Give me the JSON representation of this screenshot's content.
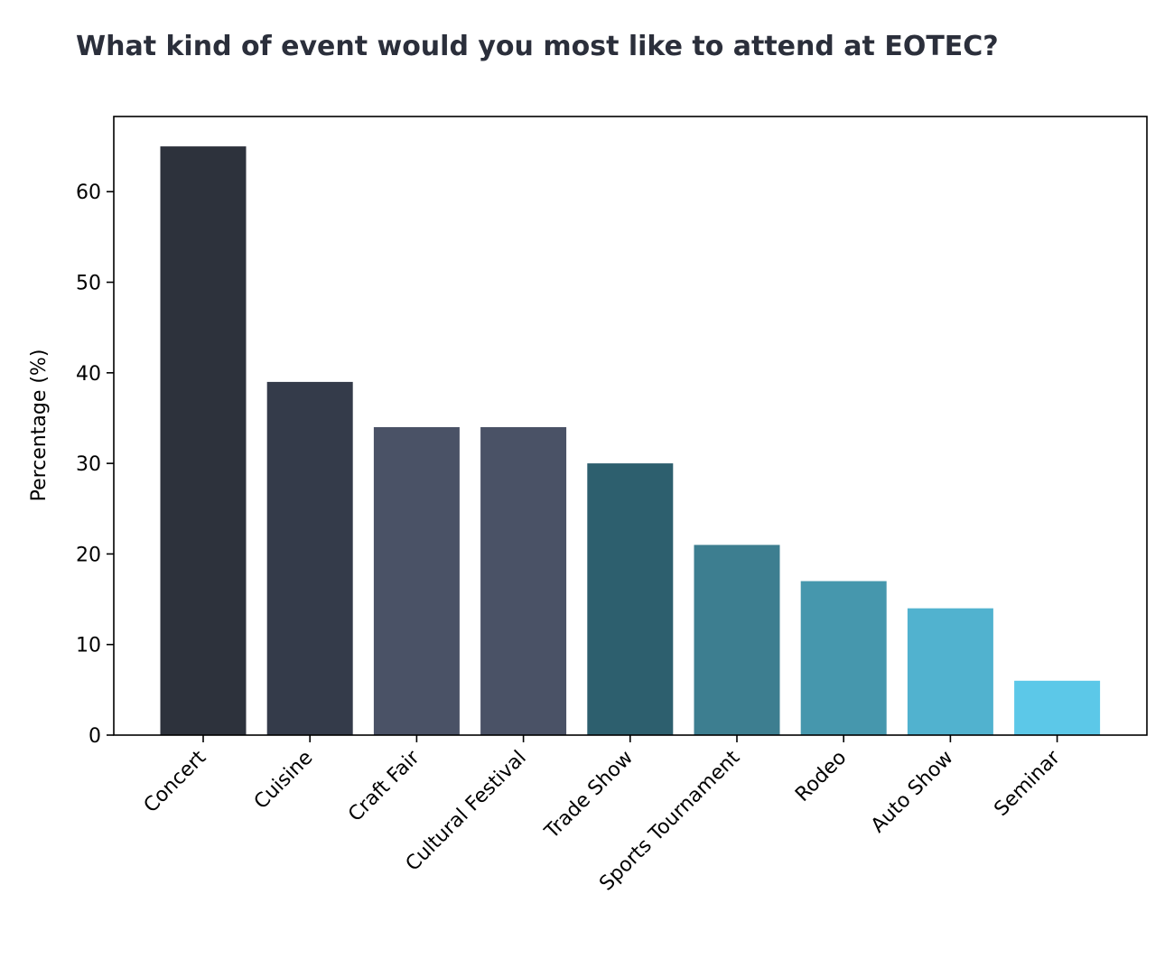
{
  "chart_data": {
    "type": "bar",
    "title": "What kind of event would you most like to attend at EOTEC?",
    "xlabel": "",
    "ylabel": "Percentage (%)",
    "categories": [
      "Concert",
      "Cuisine",
      "Craft Fair",
      "Cultural Festival",
      "Trade Show",
      "Sports Tournament",
      "Rodeo",
      "Auto Show",
      "Seminar"
    ],
    "values": [
      65,
      39,
      34,
      34,
      30,
      21,
      17,
      14,
      6
    ],
    "colors": [
      "#2d323c",
      "#343b4a",
      "#4a5266",
      "#4a5266",
      "#2d5f6e",
      "#3d7e90",
      "#4697ad",
      "#51b2cf",
      "#5cc8e8"
    ],
    "yticks": [
      0,
      10,
      20,
      30,
      40,
      50,
      60
    ],
    "ylim": [
      0,
      68.3
    ],
    "grid": false,
    "legend": "none"
  }
}
